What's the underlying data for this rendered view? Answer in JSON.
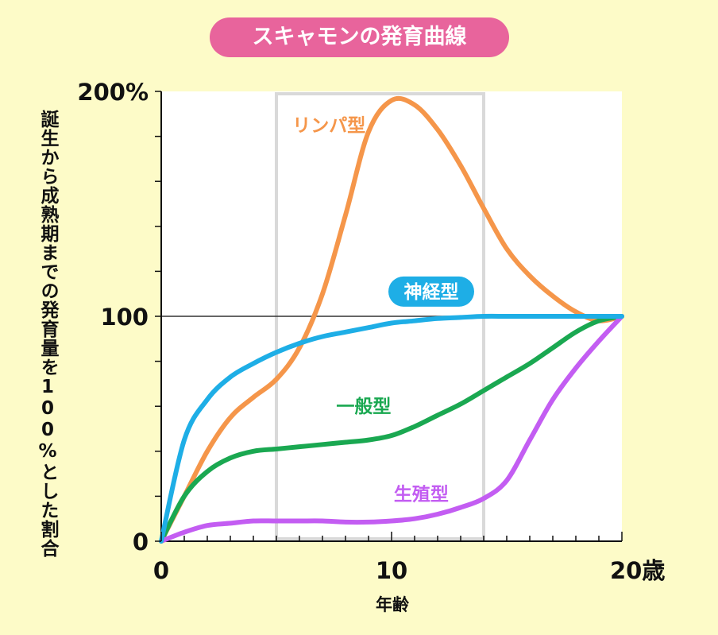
{
  "chart_data": {
    "type": "line",
    "title": "スキャモンの発育曲線",
    "xlabel": "年齢",
    "ylabel": "誕生から成熟期までの発育量を100%とした割合",
    "xlim": [
      0,
      20
    ],
    "ylim": [
      0,
      200
    ],
    "x_tick_labels": [
      {
        "x": 0,
        "label": "0"
      },
      {
        "x": 10,
        "label": "10"
      },
      {
        "x": 20,
        "label": "20歳"
      }
    ],
    "y_tick_labels": [
      {
        "y": 0,
        "label": "0"
      },
      {
        "y": 100,
        "label": "100"
      },
      {
        "y": 200,
        "label": "200%"
      }
    ],
    "highlight_range": [
      5,
      14
    ],
    "reference_line": 100,
    "series": [
      {
        "name": "リンパ型",
        "color": "#f5964a",
        "label_color": "#f5964a",
        "x": [
          0,
          1,
          2,
          3,
          4,
          5,
          6,
          7,
          8,
          9,
          10,
          11,
          12,
          13,
          14,
          15,
          16,
          17,
          18,
          19,
          20
        ],
        "y": [
          0,
          20,
          40,
          55,
          64,
          72,
          86,
          110,
          145,
          182,
          196,
          194,
          183,
          167,
          148,
          130,
          118,
          109,
          102,
          98,
          100
        ]
      },
      {
        "name": "神経型",
        "color": "#1eaee6",
        "label_color": "#ffffff",
        "label_bg": "#1eaee6",
        "x": [
          0,
          1,
          2,
          3,
          4,
          5,
          6,
          7,
          8,
          9,
          10,
          11,
          12,
          13,
          14,
          15,
          16,
          17,
          18,
          19,
          20
        ],
        "y": [
          0,
          45,
          63,
          73,
          79,
          84,
          88,
          91,
          93,
          95,
          97,
          98,
          99,
          99.5,
          100,
          100,
          100,
          100,
          100,
          100,
          100
        ]
      },
      {
        "name": "一般型",
        "color": "#1aa851",
        "label_color": "#1aa851",
        "x": [
          0,
          1,
          2,
          3,
          4,
          5,
          6,
          7,
          8,
          9,
          10,
          11,
          12,
          13,
          14,
          15,
          16,
          17,
          18,
          19,
          20
        ],
        "y": [
          0,
          20,
          31,
          37,
          40,
          41,
          42,
          43,
          44,
          45,
          47,
          51,
          56,
          61,
          67,
          73,
          79,
          86,
          93,
          98,
          100
        ]
      },
      {
        "name": "生殖型",
        "color": "#c35df2",
        "label_color": "#c35df2",
        "x": [
          0,
          1,
          2,
          3,
          4,
          5,
          6,
          7,
          8,
          9,
          10,
          11,
          12,
          13,
          14,
          15,
          16,
          17,
          18,
          19,
          20
        ],
        "y": [
          0,
          4,
          7,
          8,
          9,
          9,
          9,
          9,
          8.5,
          8.5,
          9,
          10,
          12,
          15,
          19,
          27,
          45,
          63,
          77,
          89,
          100
        ]
      }
    ],
    "label_positions": [
      {
        "series": 0,
        "x": 5.7,
        "y": 185
      },
      {
        "series": 1,
        "x": 10,
        "y": 111
      },
      {
        "series": 2,
        "x": 7.6,
        "y": 60
      },
      {
        "series": 3,
        "x": 10.1,
        "y": 21
      }
    ]
  }
}
